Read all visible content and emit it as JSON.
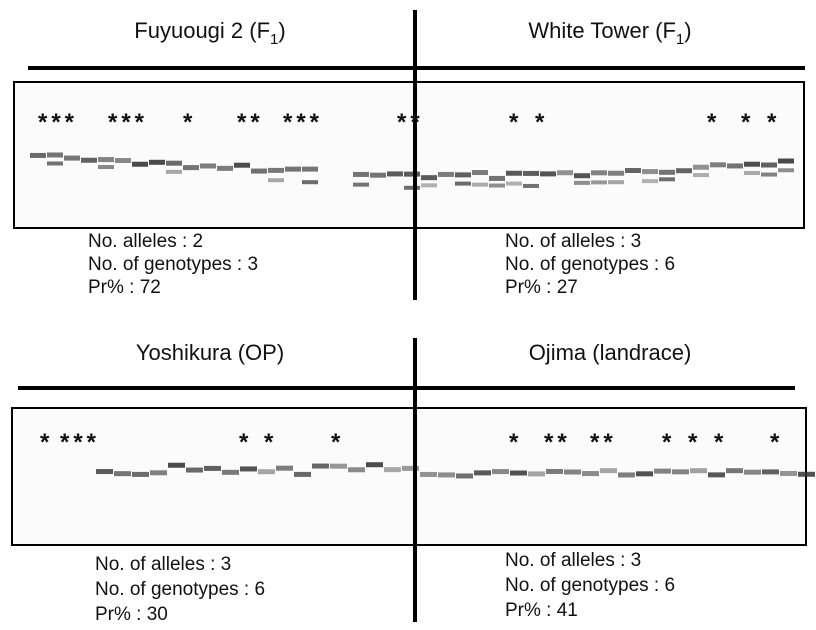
{
  "panels": [
    {
      "title": {
        "text": "Fuyuougi 2 (F",
        "sub": "1",
        "tail": ")"
      },
      "stats": [
        "No. alleles : 2",
        "No. of genotypes : 3",
        "Pr% : 72"
      ]
    },
    {
      "title": {
        "text": "White Tower (F",
        "sub": "1",
        "tail": ")"
      },
      "stats": [
        "No. of alleles : 3",
        "No. of genotypes : 6",
        "Pr% : 27"
      ]
    },
    {
      "title": {
        "text": "Yoshikura (OP)"
      },
      "stats": [
        "No. of alleles : 3",
        "No. of genotypes : 6",
        "Pr% : 30"
      ]
    },
    {
      "title": {
        "text": "Ojima (landrace)"
      },
      "stats": [
        "No. of alleles : 3",
        "No. of genotypes : 6",
        "Pr% : 41"
      ]
    }
  ],
  "gels": [
    {
      "stars": [
        "***",
        "***",
        "*",
        "**",
        "***",
        "**",
        "*",
        "*",
        "*",
        "*",
        "*"
      ]
    },
    {
      "stars": [
        "*",
        "***",
        "*",
        "*",
        "*",
        "*",
        "**",
        "**",
        "*",
        "*",
        "*",
        "*"
      ]
    }
  ]
}
